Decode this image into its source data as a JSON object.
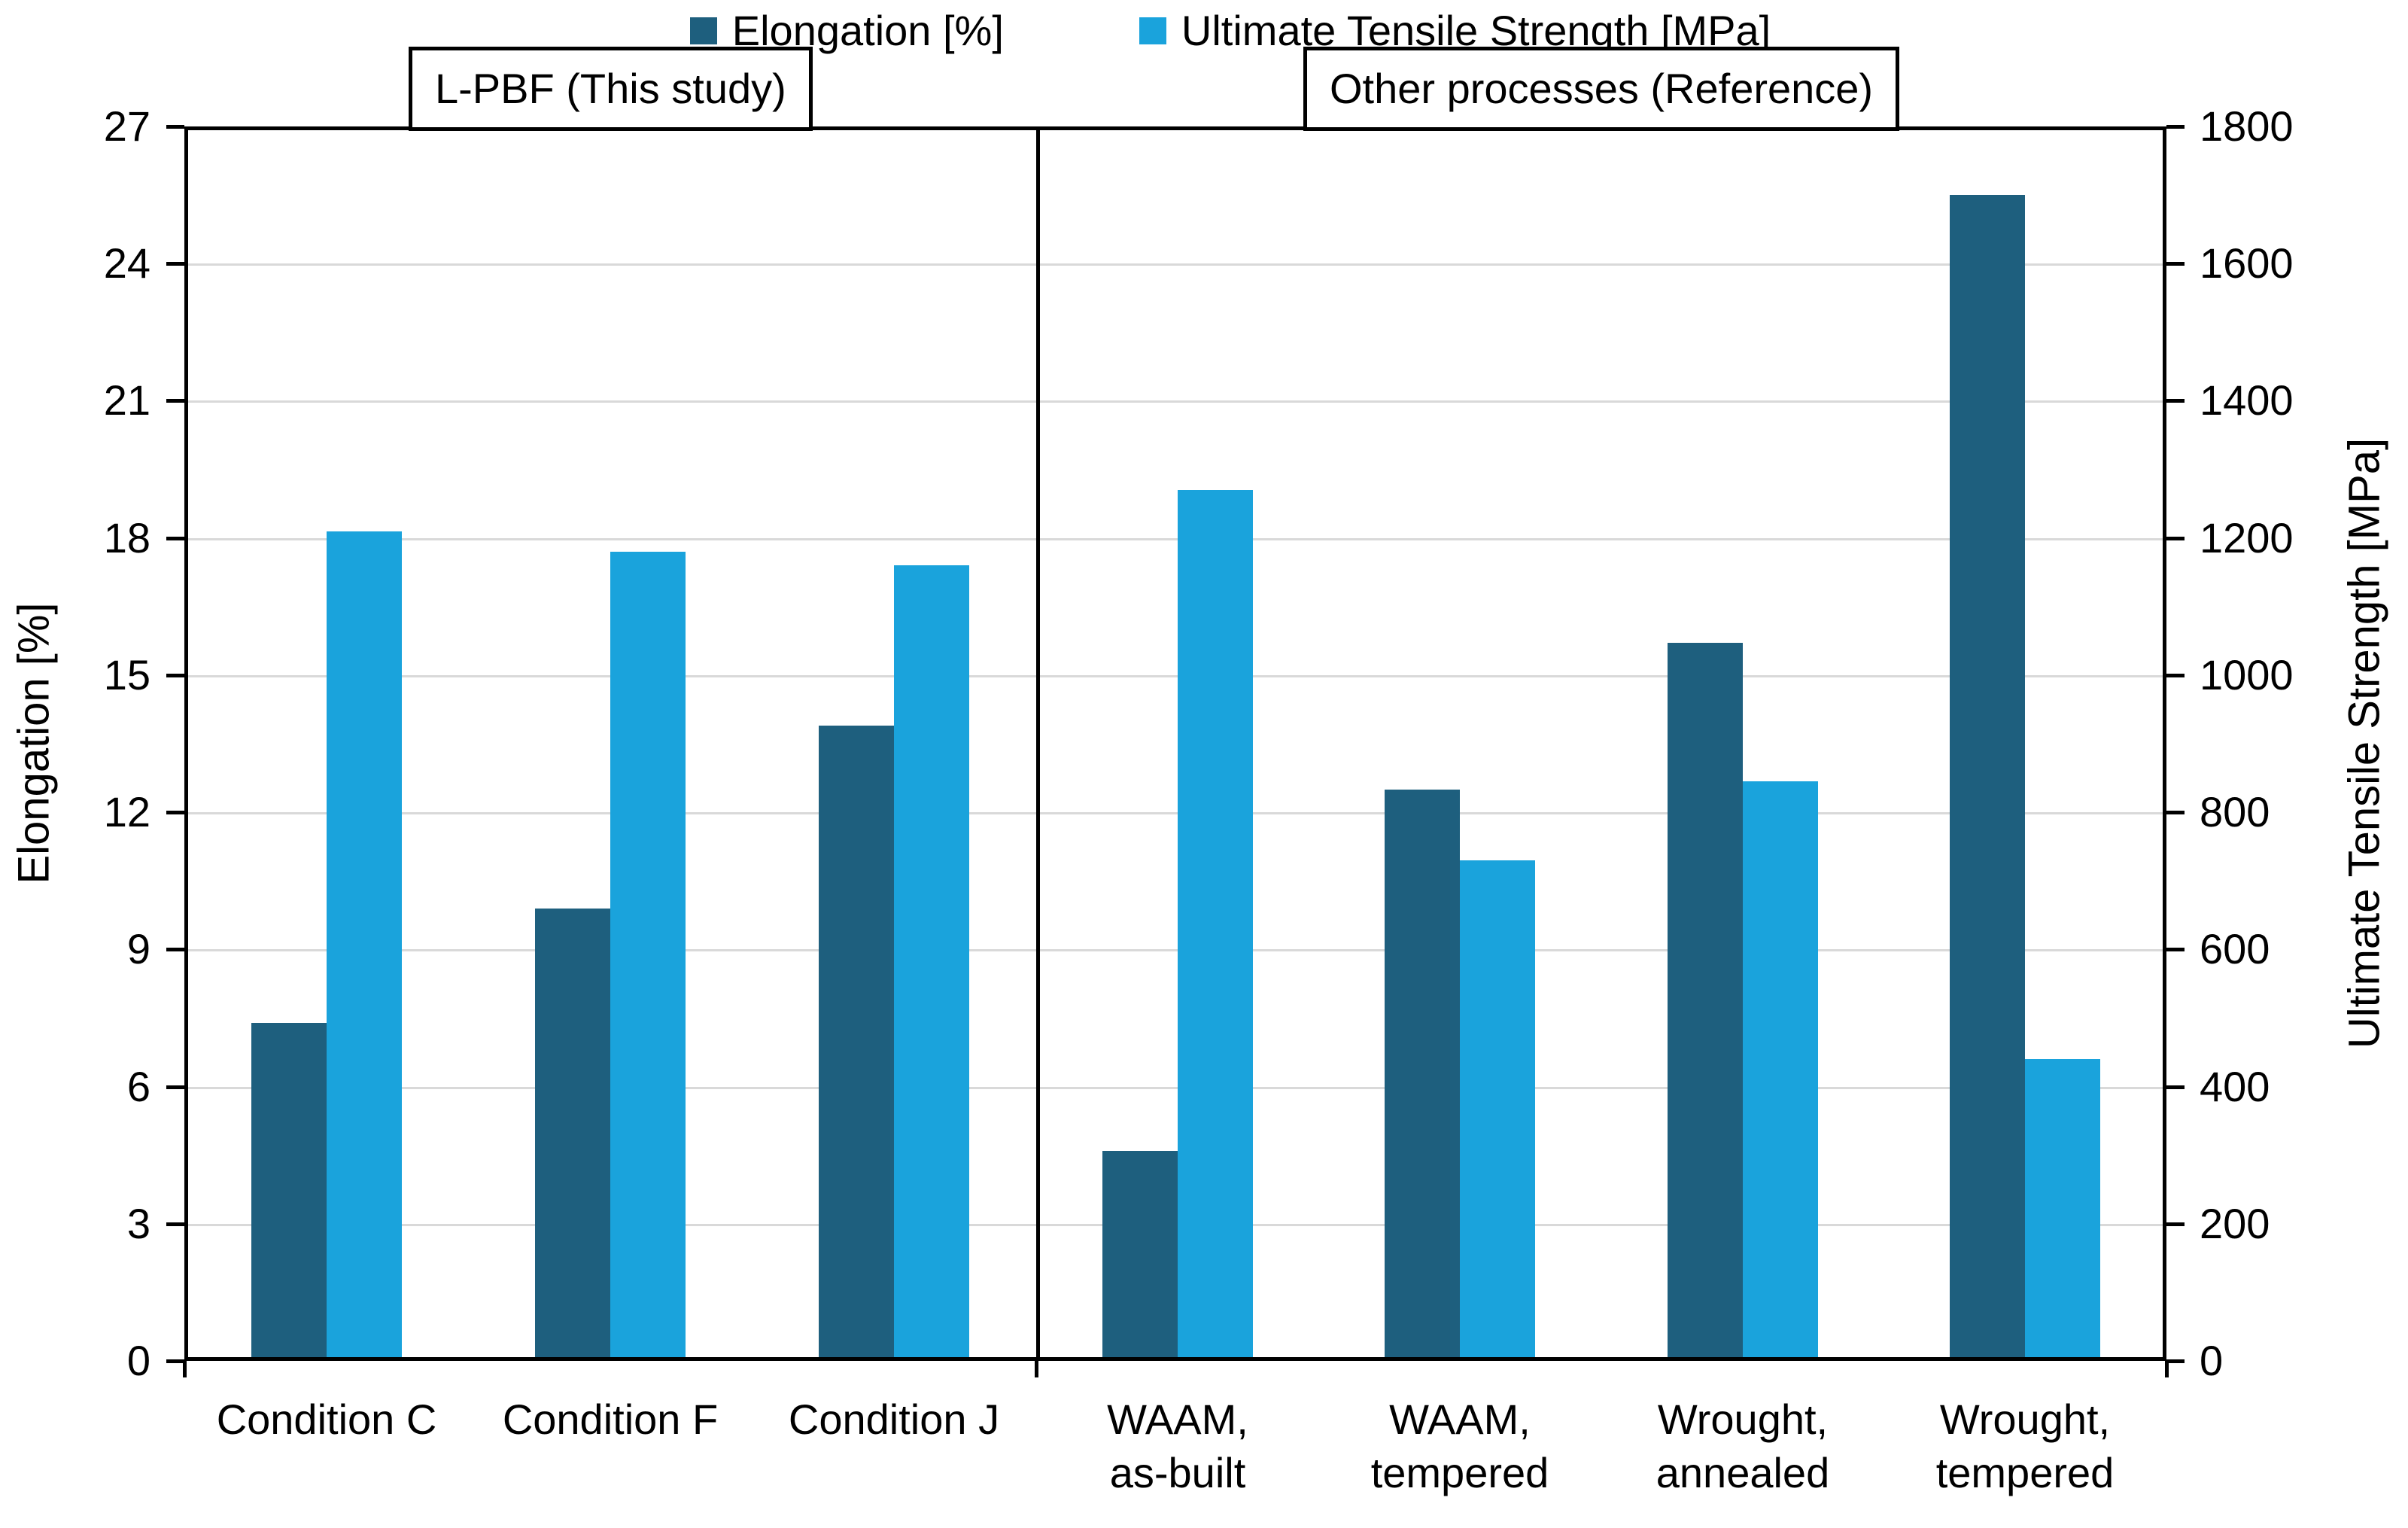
{
  "chart_data": {
    "type": "bar",
    "title": "",
    "legend_position": "top",
    "grid": true,
    "panels": [
      {
        "label": "L-PBF (This study)",
        "category_indices": [
          0,
          1,
          2
        ]
      },
      {
        "label": "Other processes (Reference)",
        "category_indices": [
          3,
          4,
          5,
          6
        ]
      }
    ],
    "categories": [
      "Condition C",
      "Condition F",
      "Condition J",
      "WAAM,\nas-built",
      "WAAM,\ntempered",
      "Wrought,\nannealed",
      "Wrought,\ntempered"
    ],
    "series": [
      {
        "name": "Elongation [%]",
        "axis": "left",
        "color": "#1e5f7e",
        "values": [
          7.4,
          9.9,
          13.9,
          4.6,
          12.5,
          15.7,
          25.5
        ]
      },
      {
        "name": "Ultimate Tensile Strength [MPa]",
        "axis": "right",
        "color": "#1aa3dc",
        "values": [
          1210,
          1180,
          1160,
          1270,
          730,
          845,
          440
        ]
      }
    ],
    "y_left": {
      "label": "Elongation [%]",
      "min": 0,
      "max": 27,
      "step": 3,
      "ticks": [
        "0",
        "3",
        "6",
        "9",
        "12",
        "15",
        "18",
        "21",
        "24",
        "27"
      ]
    },
    "y_right": {
      "label": "Ultimate Tensile Strength [MPa]",
      "min": 0,
      "max": 1800,
      "step": 200,
      "ticks": [
        "0",
        "200",
        "400",
        "600",
        "800",
        "1000",
        "1200",
        "1400",
        "1600",
        "1800"
      ]
    }
  }
}
